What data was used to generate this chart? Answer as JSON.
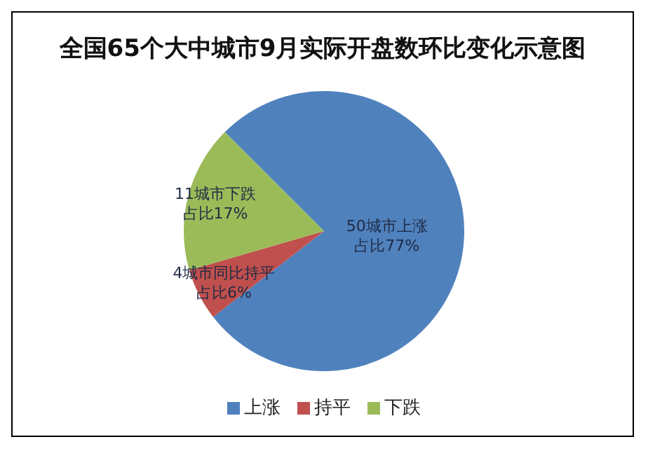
{
  "chart_data": {
    "type": "pie",
    "title": "全国65个大中城市9月实际开盘数环比变化示意图",
    "categories": [
      "上涨",
      "持平",
      "下跌"
    ],
    "values": [
      77,
      6,
      17
    ],
    "colors": [
      "#4f81bd",
      "#c0504d",
      "#9bbb59"
    ],
    "value_labels": [
      "50城市上涨占比77%",
      "4城市同比持平占比6%",
      "11城市下跌占比17%"
    ],
    "legend": "bottom"
  }
}
